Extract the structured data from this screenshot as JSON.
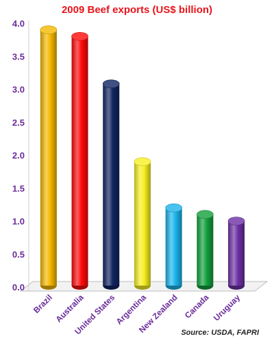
{
  "chart_data": {
    "type": "bar",
    "title": "2009 Beef exports (US$ billion)",
    "source": "Source: USDA, FAPRI",
    "categories": [
      "Brazil",
      "Australia",
      "United States",
      "Argentina",
      "New Zealand",
      "Canada",
      "Uruguay"
    ],
    "values": [
      3.9,
      3.8,
      3.08,
      1.9,
      1.2,
      1.1,
      1.0
    ],
    "colors": [
      "#f5b800",
      "#ff0a0a",
      "#0f2461",
      "#f7f020",
      "#1ab4ec",
      "#12a03c",
      "#6d2fa4"
    ],
    "ylim": [
      0,
      4.0
    ],
    "yticks": [
      "0.0",
      "0.5",
      "1.0",
      "1.5",
      "2.0",
      "2.5",
      "3.0",
      "3.5",
      "4.0"
    ],
    "grid": false,
    "legend": "none"
  }
}
